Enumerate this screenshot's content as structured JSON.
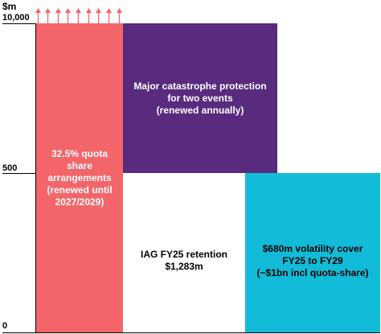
{
  "axis": {
    "unit": "$m",
    "ticks": [
      "10,000",
      "500",
      "0"
    ]
  },
  "blocks": {
    "quota_share": {
      "text": "32.5% quota\nshare\narrangements\n(renewed until\n2027/2029)",
      "color": "#f46569",
      "text_color": "#ffffff"
    },
    "catastrophe": {
      "text": "Major catastrophe protection\nfor two events\n(renewed annually)",
      "color": "#582b7e",
      "text_color": "#ffffff"
    },
    "retention": {
      "text": "IAG FY25 retention\n$1,283m",
      "color": "#ffffff",
      "text_color": "#000000"
    },
    "volatility": {
      "text": "$680m volatility cover\nFY25 to FY29\n(~$1bn incl quota-share)",
      "color": "#12bcd8",
      "text_color": "#000000"
    }
  },
  "arrows": {
    "count": 9,
    "color": "#f46569",
    "icon": "arrow-up-icon"
  }
}
